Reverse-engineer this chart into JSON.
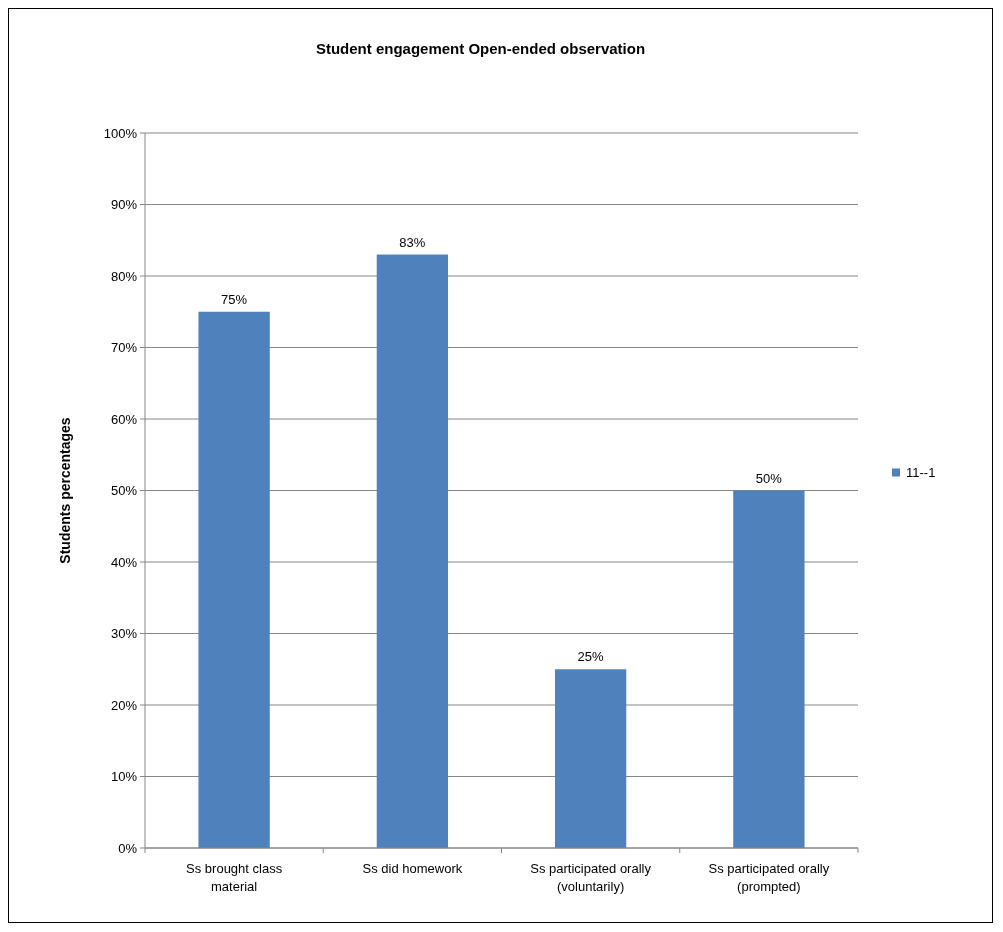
{
  "chart_data": {
    "type": "bar",
    "title": "Student engagement Open-ended observation",
    "ylabel": "Students percentages",
    "categories": [
      "Ss brought class material",
      "Ss did homework",
      "Ss participated orally (voluntarily)",
      "Ss participated orally (prompted)"
    ],
    "series": [
      {
        "name": "11--1",
        "color": "#4f81bd",
        "values": [
          75,
          83,
          25,
          50
        ],
        "value_labels": [
          "75%",
          "83%",
          "25%",
          "50%"
        ]
      }
    ],
    "ylim": [
      0,
      100
    ],
    "yticks": [
      {
        "value": 0,
        "label": "0%"
      },
      {
        "value": 10,
        "label": "10%"
      },
      {
        "value": 20,
        "label": "20%"
      },
      {
        "value": 30,
        "label": "30%"
      },
      {
        "value": 40,
        "label": "40%"
      },
      {
        "value": 50,
        "label": "50%"
      },
      {
        "value": 60,
        "label": "60%"
      },
      {
        "value": 70,
        "label": "70%"
      },
      {
        "value": 80,
        "label": "80%"
      },
      {
        "value": 90,
        "label": "90%"
      },
      {
        "value": 100,
        "label": "100%"
      }
    ],
    "grid": "y",
    "legend": "right"
  }
}
